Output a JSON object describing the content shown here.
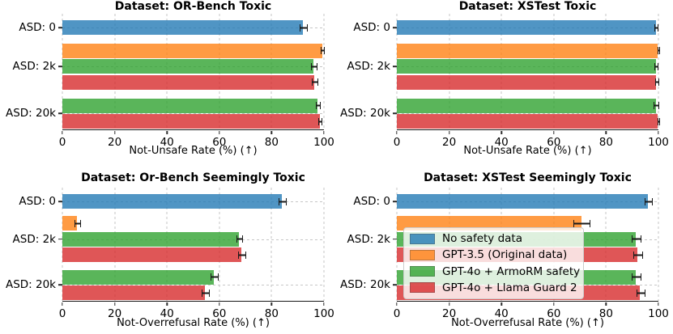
{
  "colors": {
    "series": {
      "No safety data": "#1f77b4",
      "GPT-3.5 (Original data)": "#ff7f0e",
      "GPT-4o + ArmoRM safety": "#2ca02c",
      "GPT-4o + Llama Guard 2": "#d62728"
    },
    "bar_alpha": 0.78,
    "grid": "#c6c6c6",
    "axis": "#161616"
  },
  "categories": [
    "ASD: 0",
    "ASD: 2k",
    "ASD: 20k"
  ],
  "chart_data": [
    {
      "type": "bar",
      "orientation": "horizontal",
      "title": "Dataset: OR-Bench Toxic",
      "xlabel": "Not-Unsafe Rate (%) (↑)",
      "xlim": [
        0,
        100
      ],
      "xticks": [
        0,
        20,
        40,
        60,
        80,
        100
      ],
      "grid": true,
      "groups": [
        {
          "label": "ASD: 0",
          "bars": [
            {
              "series": "No safety data",
              "value": 92,
              "err": 1.2
            }
          ]
        },
        {
          "label": "ASD: 2k",
          "bars": [
            {
              "series": "GPT-3.5 (Original data)",
              "value": 99.3,
              "err": 0.4
            },
            {
              "series": "GPT-4o + ArmoRM safety",
              "value": 96,
              "err": 0.8
            },
            {
              "series": "GPT-4o + Llama Guard 2",
              "value": 96.3,
              "err": 0.8
            }
          ]
        },
        {
          "label": "ASD: 20k",
          "bars": [
            {
              "series": "GPT-4o + ArmoRM safety",
              "value": 97.5,
              "err": 0.6
            },
            {
              "series": "GPT-4o + Llama Guard 2",
              "value": 98.3,
              "err": 0.5
            }
          ]
        }
      ]
    },
    {
      "type": "bar",
      "orientation": "horizontal",
      "title": "Dataset: XSTest Toxic",
      "xlabel": "Not-Unsafe Rate (%) (↑)",
      "xlim": [
        0,
        100
      ],
      "xticks": [
        0,
        20,
        40,
        60,
        80,
        100
      ],
      "grid": true,
      "groups": [
        {
          "label": "ASD: 0",
          "bars": [
            {
              "series": "No safety data",
              "value": 99,
              "err": 0.5
            }
          ]
        },
        {
          "label": "ASD: 2k",
          "bars": [
            {
              "series": "GPT-3.5 (Original data)",
              "value": 99.8,
              "err": 0.2
            },
            {
              "series": "GPT-4o + ArmoRM safety",
              "value": 99,
              "err": 0.5
            },
            {
              "series": "GPT-4o + Llama Guard 2",
              "value": 99.2,
              "err": 0.5
            }
          ]
        },
        {
          "label": "ASD: 20k",
          "bars": [
            {
              "series": "GPT-4o + ArmoRM safety",
              "value": 99,
              "err": 0.8
            },
            {
              "series": "GPT-4o + Llama Guard 2",
              "value": 99.8,
              "err": 0.2
            }
          ]
        }
      ]
    },
    {
      "type": "bar",
      "orientation": "horizontal",
      "title": "Dataset: Or-Bench Seemingly Toxic",
      "xlabel": "Not-Overrefusal Rate (%) (↑)",
      "xlim": [
        0,
        100
      ],
      "xticks": [
        0,
        20,
        40,
        60,
        80,
        100
      ],
      "grid": true,
      "groups": [
        {
          "label": "ASD: 0",
          "bars": [
            {
              "series": "No safety data",
              "value": 84,
              "err": 1.2
            }
          ]
        },
        {
          "label": "ASD: 2k",
          "bars": [
            {
              "series": "GPT-3.5 (Original data)",
              "value": 5.5,
              "err": 1
            },
            {
              "series": "GPT-4o + ArmoRM safety",
              "value": 67.5,
              "err": 1
            },
            {
              "series": "GPT-4o + Llama Guard 2",
              "value": 68.5,
              "err": 1.2
            }
          ]
        },
        {
          "label": "ASD: 20k",
          "bars": [
            {
              "series": "GPT-4o + ArmoRM safety",
              "value": 58,
              "err": 1.2
            },
            {
              "series": "GPT-4o + Llama Guard 2",
              "value": 54.5,
              "err": 1.2
            }
          ]
        }
      ]
    },
    {
      "type": "bar",
      "orientation": "horizontal",
      "title": "Dataset: XSTest Seemingly Toxic",
      "xlabel": "Not-Overrefusal Rate (%) (↑)",
      "xlim": [
        0,
        100
      ],
      "xticks": [
        0,
        20,
        40,
        60,
        80,
        100
      ],
      "grid": true,
      "legend_position": "center-left-overlay",
      "groups": [
        {
          "label": "ASD: 0",
          "bars": [
            {
              "series": "No safety data",
              "value": 96,
              "err": 1.2
            }
          ]
        },
        {
          "label": "ASD: 2k",
          "bars": [
            {
              "series": "GPT-3.5 (Original data)",
              "value": 70.5,
              "err": 3
            },
            {
              "series": "GPT-4o + ArmoRM safety",
              "value": 91.3,
              "err": 1.5
            },
            {
              "series": "GPT-4o + Llama Guard 2",
              "value": 92,
              "err": 1.5
            }
          ]
        },
        {
          "label": "ASD: 20k",
          "bars": [
            {
              "series": "GPT-4o + ArmoRM safety",
              "value": 91.3,
              "err": 1.5
            },
            {
              "series": "GPT-4o + Llama Guard 2",
              "value": 93,
              "err": 1.5
            }
          ]
        }
      ]
    }
  ],
  "legend": {
    "entries": [
      {
        "label": "No safety data",
        "series": "No safety data"
      },
      {
        "label": "GPT-3.5 (Original data)",
        "series": "GPT-3.5 (Original data)"
      },
      {
        "label": "GPT-4o + ArmoRM safety",
        "series": "GPT-4o + ArmoRM safety"
      },
      {
        "label": "GPT-4o + Llama Guard 2",
        "series": "GPT-4o + Llama Guard 2"
      }
    ]
  }
}
